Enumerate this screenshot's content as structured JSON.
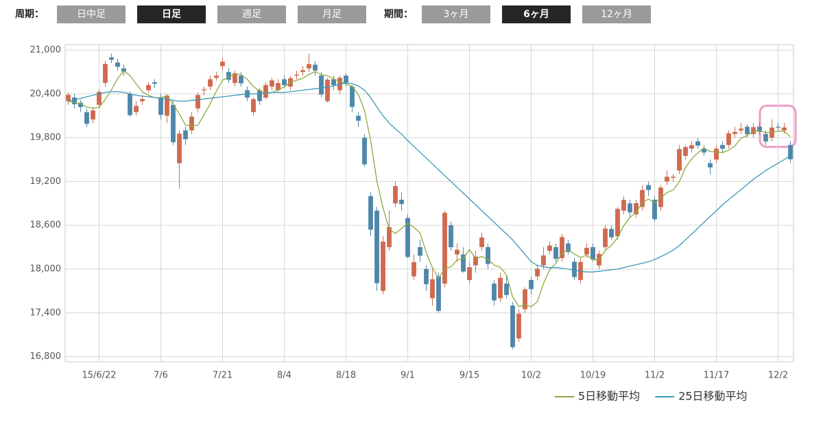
{
  "toolbar": {
    "period_label": "周期：",
    "periods": [
      {
        "label": "日中足",
        "active": false
      },
      {
        "label": "日足",
        "active": true
      },
      {
        "label": "週足",
        "active": false
      },
      {
        "label": "月足",
        "active": false
      }
    ],
    "range_label": "期間：",
    "ranges": [
      {
        "label": "3ヶ月",
        "active": false
      },
      {
        "label": "6ヶ月",
        "active": true
      },
      {
        "label": "12ヶ月",
        "active": false
      }
    ]
  },
  "chart_data": {
    "type": "candlestick",
    "categories": [
      null,
      null,
      null,
      null,
      null,
      "15/6/22",
      null,
      null,
      null,
      null,
      null,
      null,
      null,
      null,
      null,
      "7/6",
      null,
      null,
      null,
      null,
      null,
      null,
      null,
      null,
      null,
      "7/21",
      null,
      null,
      null,
      null,
      null,
      null,
      null,
      null,
      null,
      "8/4",
      null,
      null,
      null,
      null,
      null,
      null,
      null,
      null,
      null,
      "8/18",
      null,
      null,
      null,
      null,
      null,
      null,
      null,
      null,
      null,
      "9/1",
      null,
      null,
      null,
      null,
      null,
      null,
      null,
      null,
      null,
      "9/15",
      null,
      null,
      null,
      null,
      null,
      null,
      null,
      null,
      null,
      "10/2",
      null,
      null,
      null,
      null,
      null,
      null,
      null,
      null,
      null,
      "10/19",
      null,
      null,
      null,
      null,
      null,
      null,
      null,
      null,
      null,
      "11/2",
      null,
      null,
      null,
      null,
      null,
      null,
      null,
      null,
      null,
      "11/17",
      null,
      null,
      null,
      null,
      null,
      null,
      null,
      null,
      null,
      "12/2",
      null,
      null
    ],
    "open": [
      20300,
      20350,
      20280,
      20150,
      20050,
      20250,
      20550,
      20900,
      20830,
      20750,
      20400,
      20150,
      20300,
      20450,
      20560,
      20350,
      20100,
      20250,
      19450,
      19900,
      19900,
      20200,
      20450,
      20500,
      20620,
      20780,
      20700,
      20550,
      20650,
      20450,
      20150,
      20450,
      20350,
      20500,
      20450,
      20600,
      20500,
      20650,
      20700,
      20750,
      20800,
      20650,
      20300,
      20600,
      20450,
      20650,
      20500,
      20100,
      19800,
      19000,
      18800,
      17700,
      18300,
      18900,
      18950,
      18700,
      17900,
      18300,
      18000,
      17600,
      17900,
      17800,
      18600,
      18200,
      18200,
      17850,
      18050,
      18300,
      18300,
      17800,
      17600,
      17800,
      17500,
      17050,
      17450,
      17850,
      17900,
      18050,
      18250,
      18300,
      18150,
      18350,
      18100,
      17850,
      18200,
      18300,
      18050,
      18300,
      18550,
      18450,
      18800,
      18900,
      18750,
      18850,
      19150,
      18950,
      18850,
      19200,
      19250,
      19350,
      19550,
      19650,
      19750,
      19650,
      19450,
      19500,
      19700,
      19700,
      19850,
      19900,
      19950,
      19850,
      19950,
      19850,
      19800,
      19950,
      19900,
      19700
    ],
    "high": [
      20420,
      20400,
      20320,
      20200,
      20220,
      20460,
      20850,
      20950,
      20880,
      20800,
      20430,
      20300,
      20380,
      20560,
      20600,
      20400,
      20400,
      20300,
      19900,
      19950,
      20150,
      20420,
      20500,
      20650,
      20700,
      20900,
      20750,
      20720,
      20700,
      20500,
      20350,
      20480,
      20560,
      20620,
      20600,
      20650,
      20650,
      20720,
      20780,
      20950,
      20850,
      20700,
      20620,
      20650,
      20650,
      20680,
      20520,
      20150,
      19850,
      19050,
      18850,
      18450,
      18800,
      19200,
      19050,
      18750,
      18200,
      18400,
      18050,
      18000,
      17950,
      18800,
      18650,
      18350,
      18300,
      18100,
      18250,
      18500,
      18350,
      17850,
      17950,
      17900,
      17550,
      17450,
      17750,
      17900,
      18050,
      18300,
      18380,
      18350,
      18480,
      18400,
      18150,
      18150,
      18350,
      18350,
      18250,
      18600,
      18600,
      18850,
      19000,
      18950,
      18950,
      19150,
      19200,
      19000,
      19150,
      19350,
      19300,
      19700,
      19700,
      19750,
      19800,
      19700,
      19500,
      19700,
      19750,
      19900,
      19950,
      20000,
      19980,
      20000,
      20000,
      19900,
      20050,
      20000,
      20000,
      19750
    ],
    "low": [
      20250,
      20200,
      20150,
      19950,
      20000,
      20200,
      20500,
      20820,
      20720,
      20650,
      20090,
      20100,
      20250,
      20420,
      20480,
      20050,
      20000,
      19700,
      19100,
      19700,
      19850,
      20150,
      20380,
      20450,
      20580,
      20720,
      20550,
      20500,
      20500,
      20300,
      20100,
      20250,
      20320,
      20450,
      20420,
      20480,
      20450,
      20600,
      20650,
      20700,
      20650,
      20350,
      20280,
      20450,
      20400,
      20500,
      20150,
      19950,
      19400,
      18450,
      17700,
      17650,
      18250,
      18850,
      18800,
      18150,
      17850,
      18100,
      17700,
      17500,
      17400,
      17750,
      18250,
      18100,
      17950,
      17800,
      17950,
      18250,
      18000,
      17500,
      17550,
      17600,
      16900,
      17000,
      17400,
      17650,
      17850,
      18000,
      18200,
      18100,
      18100,
      18200,
      17850,
      17800,
      18150,
      18100,
      18000,
      18250,
      18400,
      18400,
      18750,
      18700,
      18700,
      18800,
      19000,
      18650,
      18800,
      19150,
      19200,
      19300,
      19500,
      19600,
      19650,
      19550,
      19300,
      19450,
      19600,
      19650,
      19800,
      19850,
      19800,
      19800,
      19850,
      19700,
      19750,
      19900,
      19850,
      19450
    ],
    "close": [
      20387,
      20257,
      20219,
      19990,
      20174,
      20428,
      20809,
      20868,
      20771,
      20706,
      20109,
      20235,
      20329,
      20522,
      20539,
      20112,
      20376,
      19737,
      19855,
      19779,
      20089,
      20385,
      20463,
      20600,
      20650,
      20841,
      20593,
      20683,
      20544,
      20350,
      20328,
      20302,
      20522,
      20585,
      20548,
      20520,
      20614,
      20664,
      20724,
      20808,
      20720,
      20392,
      20595,
      20519,
      20620,
      20554,
      20222,
      20033,
      19435,
      18540,
      17806,
      18376,
      18574,
      19136,
      18890,
      18165,
      18095,
      18182,
      17792,
      17860,
      17427,
      18770,
      18299,
      18264,
      17965,
      18026,
      18171,
      18432,
      18070,
      17571,
      17880,
      17645,
      16930,
      17388,
      17722,
      17725,
      18005,
      18186,
      18322,
      18141,
      18438,
      18234,
      17891,
      18096,
      18291,
      18131,
      18207,
      18554,
      18435,
      18825,
      18947,
      18777,
      18903,
      19083,
      19083,
      18683,
      19116,
      19265,
      19265,
      19642,
      19671,
      19697,
      19691,
      19596,
      19393,
      19649,
      19649,
      19859,
      19879,
      19925,
      19847,
      19944,
      19883,
      19747,
      19938,
      19938,
      19939,
      19504
    ],
    "up_color": "#cf6a4f",
    "down_color": "#4e87aa",
    "series": [
      {
        "name": "5日移動平均",
        "color": "#8aaa3c",
        "values": [
          20300,
          20280,
          20270,
          20220,
          20205,
          20214,
          20324,
          20454,
          20610,
          20716,
          20653,
          20538,
          20430,
          20380,
          20347,
          20347,
          20376,
          20257,
          20124,
          19972,
          19967,
          19969,
          20114,
          20263,
          20437,
          20588,
          20629,
          20673,
          20662,
          20602,
          20500,
          20441,
          20409,
          20417,
          20457,
          20495,
          20558,
          20586,
          20614,
          20666,
          20706,
          20662,
          20648,
          20607,
          20569,
          20536,
          20502,
          20390,
          20173,
          19757,
          19207,
          18838,
          18546,
          18486,
          18556,
          18628,
          18572,
          18494,
          18225,
          18019,
          17871,
          18006,
          18030,
          18124,
          18145,
          18265,
          18145,
          18172,
          18133,
          18054,
          18025,
          17920,
          17619,
          17483,
          17513,
          17482,
          17554,
          17805,
          17992,
          18076,
          18218,
          18264,
          18205,
          18160,
          18190,
          18129,
          18123,
          18256,
          18324,
          18430,
          18594,
          18708,
          18777,
          18907,
          18959,
          18906,
          18974,
          19046,
          19082,
          19194,
          19392,
          19508,
          19593,
          19659,
          19610,
          19605,
          19596,
          19629,
          19686,
          19792,
          19832,
          19891,
          19896,
          19869,
          19872,
          19890,
          19889,
          19813
        ]
      },
      {
        "name": "25日移動平均",
        "color": "#3b98b8",
        "values": [
          20300,
          20320,
          20340,
          20360,
          20380,
          20400,
          20420,
          20430,
          20430,
          20420,
          20400,
          20380,
          20370,
          20360,
          20350,
          20340,
          20330,
          20310,
          20300,
          20300,
          20310,
          20320,
          20330,
          20340,
          20350,
          20360,
          20370,
          20380,
          20390,
          20400,
          20400,
          20400,
          20410,
          20420,
          20420,
          20420,
          20430,
          20440,
          20450,
          20460,
          20470,
          20480,
          20490,
          20510,
          20530,
          20550,
          20540,
          20510,
          20450,
          20350,
          20220,
          20100,
          20000,
          19920,
          19850,
          19760,
          19680,
          19600,
          19520,
          19440,
          19360,
          19280,
          19200,
          19120,
          19040,
          18960,
          18880,
          18800,
          18720,
          18640,
          18560,
          18480,
          18400,
          18300,
          18200,
          18100,
          18050,
          18030,
          18020,
          18020,
          18010,
          18000,
          17980,
          17970,
          17960,
          17960,
          17970,
          17980,
          17990,
          18000,
          18020,
          18040,
          18060,
          18080,
          18100,
          18130,
          18170,
          18210,
          18260,
          18320,
          18400,
          18480,
          18560,
          18640,
          18720,
          18800,
          18880,
          18950,
          19020,
          19090,
          19160,
          19230,
          19290,
          19350,
          19400,
          19450,
          19500,
          19560
        ]
      }
    ],
    "ylim": [
      16730,
      21075
    ],
    "yticks": [
      {
        "value": 16800,
        "label": "16,800"
      },
      {
        "value": 17400,
        "label": "17,400"
      },
      {
        "value": 18000,
        "label": "18,000"
      },
      {
        "value": 18600,
        "label": "18,600"
      },
      {
        "value": 19200,
        "label": "19,200"
      },
      {
        "value": 19800,
        "label": "19,800"
      },
      {
        "value": 20400,
        "label": "20,400"
      },
      {
        "value": 21000,
        "label": "21,000"
      }
    ],
    "grid": true,
    "legend": "bottom-right"
  }
}
